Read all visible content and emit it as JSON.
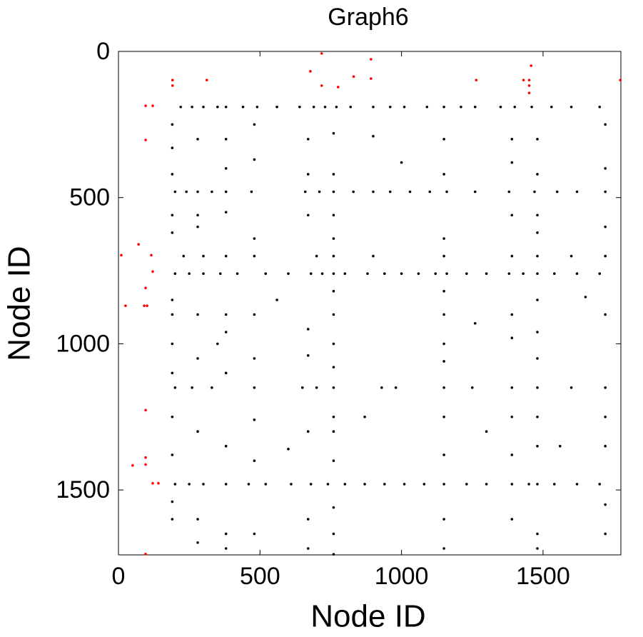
{
  "chart_data": {
    "type": "scatter",
    "title": "Graph6",
    "xlabel": "Node ID",
    "ylabel": "Node ID",
    "xlim": [
      0,
      1775
    ],
    "ylim": [
      0,
      1722
    ],
    "y_reversed": true,
    "xticks": [
      0,
      500,
      1000,
      1500
    ],
    "yticks": [
      0,
      500,
      1000,
      1500
    ],
    "series": [
      {
        "color": "#000000",
        "points": [
          [
            220,
            190
          ],
          [
            260,
            190
          ],
          [
            300,
            190
          ],
          [
            350,
            190
          ],
          [
            380,
            190
          ],
          [
            440,
            190
          ],
          [
            490,
            190
          ],
          [
            560,
            190
          ],
          [
            640,
            190
          ],
          [
            690,
            190
          ],
          [
            730,
            190
          ],
          [
            770,
            190
          ],
          [
            820,
            190
          ],
          [
            900,
            190
          ],
          [
            960,
            190
          ],
          [
            1010,
            190
          ],
          [
            1090,
            190
          ],
          [
            1150,
            190
          ],
          [
            1210,
            190
          ],
          [
            1260,
            190
          ],
          [
            1350,
            190
          ],
          [
            1400,
            190
          ],
          [
            1460,
            190
          ],
          [
            1530,
            190
          ],
          [
            1600,
            190
          ],
          [
            1700,
            190
          ],
          [
            200,
            480
          ],
          [
            240,
            480
          ],
          [
            280,
            480
          ],
          [
            330,
            480
          ],
          [
            380,
            480
          ],
          [
            470,
            480
          ],
          [
            660,
            480
          ],
          [
            710,
            480
          ],
          [
            760,
            480
          ],
          [
            830,
            480
          ],
          [
            900,
            480
          ],
          [
            960,
            480
          ],
          [
            1030,
            480
          ],
          [
            1100,
            480
          ],
          [
            1160,
            480
          ],
          [
            1260,
            480
          ],
          [
            1380,
            480
          ],
          [
            1470,
            480
          ],
          [
            1550,
            480
          ],
          [
            1620,
            480
          ],
          [
            1720,
            480
          ],
          [
            200,
            760
          ],
          [
            250,
            760
          ],
          [
            300,
            760
          ],
          [
            360,
            760
          ],
          [
            420,
            760
          ],
          [
            520,
            760
          ],
          [
            600,
            760
          ],
          [
            680,
            760
          ],
          [
            720,
            760
          ],
          [
            760,
            760
          ],
          [
            800,
            760
          ],
          [
            880,
            760
          ],
          [
            940,
            760
          ],
          [
            1000,
            760
          ],
          [
            1060,
            760
          ],
          [
            1120,
            760
          ],
          [
            1160,
            760
          ],
          [
            1230,
            760
          ],
          [
            1300,
            760
          ],
          [
            1380,
            760
          ],
          [
            1430,
            760
          ],
          [
            1480,
            760
          ],
          [
            1540,
            760
          ],
          [
            1620,
            760
          ],
          [
            1700,
            760
          ],
          [
            230,
            700
          ],
          [
            300,
            700
          ],
          [
            380,
            700
          ],
          [
            480,
            700
          ],
          [
            700,
            700
          ],
          [
            760,
            700
          ],
          [
            900,
            700
          ],
          [
            1150,
            700
          ],
          [
            1390,
            700
          ],
          [
            1480,
            700
          ],
          [
            1600,
            700
          ],
          [
            1720,
            700
          ],
          [
            200,
            1150
          ],
          [
            260,
            1150
          ],
          [
            330,
            1150
          ],
          [
            480,
            1150
          ],
          [
            650,
            1150
          ],
          [
            700,
            1150
          ],
          [
            760,
            1150
          ],
          [
            930,
            1150
          ],
          [
            980,
            1150
          ],
          [
            1150,
            1150
          ],
          [
            1250,
            1150
          ],
          [
            1390,
            1150
          ],
          [
            1480,
            1150
          ],
          [
            1600,
            1150
          ],
          [
            1720,
            1150
          ],
          [
            200,
            1480
          ],
          [
            250,
            1480
          ],
          [
            300,
            1480
          ],
          [
            380,
            1480
          ],
          [
            460,
            1480
          ],
          [
            520,
            1480
          ],
          [
            610,
            1480
          ],
          [
            680,
            1480
          ],
          [
            740,
            1480
          ],
          [
            800,
            1480
          ],
          [
            870,
            1480
          ],
          [
            940,
            1480
          ],
          [
            1010,
            1480
          ],
          [
            1080,
            1480
          ],
          [
            1150,
            1480
          ],
          [
            1230,
            1480
          ],
          [
            1300,
            1480
          ],
          [
            1390,
            1480
          ],
          [
            1450,
            1480
          ],
          [
            1480,
            1480
          ],
          [
            1540,
            1480
          ],
          [
            1620,
            1480
          ],
          [
            1700,
            1480
          ],
          [
            190,
            250
          ],
          [
            190,
            330
          ],
          [
            190,
            420
          ],
          [
            190,
            560
          ],
          [
            190,
            620
          ],
          [
            190,
            850
          ],
          [
            190,
            900
          ],
          [
            190,
            1000
          ],
          [
            190,
            1100
          ],
          [
            190,
            1250
          ],
          [
            190,
            1380
          ],
          [
            190,
            1540
          ],
          [
            190,
            1600
          ],
          [
            280,
            300
          ],
          [
            280,
            560
          ],
          [
            280,
            600
          ],
          [
            280,
            900
          ],
          [
            280,
            1050
          ],
          [
            280,
            1300
          ],
          [
            280,
            1600
          ],
          [
            280,
            1680
          ],
          [
            380,
            300
          ],
          [
            380,
            400
          ],
          [
            380,
            550
          ],
          [
            380,
            900
          ],
          [
            380,
            960
          ],
          [
            380,
            1100
          ],
          [
            380,
            1350
          ],
          [
            380,
            1650
          ],
          [
            380,
            1700
          ],
          [
            480,
            250
          ],
          [
            480,
            370
          ],
          [
            480,
            640
          ],
          [
            480,
            900
          ],
          [
            480,
            1050
          ],
          [
            480,
            1260
          ],
          [
            480,
            1400
          ],
          [
            480,
            1650
          ],
          [
            670,
            300
          ],
          [
            670,
            420
          ],
          [
            670,
            560
          ],
          [
            670,
            950
          ],
          [
            670,
            1040
          ],
          [
            670,
            1300
          ],
          [
            670,
            1600
          ],
          [
            670,
            1700
          ],
          [
            760,
            280
          ],
          [
            760,
            420
          ],
          [
            760,
            560
          ],
          [
            760,
            640
          ],
          [
            760,
            820
          ],
          [
            760,
            900
          ],
          [
            760,
            1000
          ],
          [
            760,
            1080
          ],
          [
            760,
            1250
          ],
          [
            760,
            1300
          ],
          [
            760,
            1400
          ],
          [
            760,
            1560
          ],
          [
            760,
            1650
          ],
          [
            760,
            1720
          ],
          [
            1150,
            300
          ],
          [
            1150,
            420
          ],
          [
            1150,
            640
          ],
          [
            1150,
            820
          ],
          [
            1150,
            900
          ],
          [
            1150,
            1000
          ],
          [
            1150,
            1060
          ],
          [
            1150,
            1250
          ],
          [
            1150,
            1380
          ],
          [
            1150,
            1600
          ],
          [
            1150,
            1700
          ],
          [
            1390,
            300
          ],
          [
            1390,
            380
          ],
          [
            1390,
            560
          ],
          [
            1390,
            900
          ],
          [
            1390,
            980
          ],
          [
            1390,
            1250
          ],
          [
            1390,
            1380
          ],
          [
            1390,
            1600
          ],
          [
            1480,
            300
          ],
          [
            1480,
            420
          ],
          [
            1480,
            560
          ],
          [
            1480,
            620
          ],
          [
            1480,
            850
          ],
          [
            1480,
            960
          ],
          [
            1480,
            1050
          ],
          [
            1480,
            1250
          ],
          [
            1480,
            1350
          ],
          [
            1480,
            1650
          ],
          [
            1480,
            1700
          ],
          [
            1720,
            250
          ],
          [
            1720,
            400
          ],
          [
            1720,
            600
          ],
          [
            1720,
            900
          ],
          [
            1720,
            1250
          ],
          [
            1720,
            1350
          ],
          [
            1720,
            1550
          ],
          [
            1720,
            1650
          ],
          [
            900,
            290
          ],
          [
            1000,
            380
          ],
          [
            560,
            850
          ],
          [
            1260,
            930
          ],
          [
            1650,
            840
          ],
          [
            870,
            1250
          ],
          [
            1300,
            1300
          ],
          [
            1560,
            1350
          ],
          [
            600,
            1360
          ],
          [
            350,
            1000
          ]
        ]
      },
      {
        "color": "#ff0000",
        "points": [
          [
            718,
            7
          ],
          [
            892,
            27
          ],
          [
            678,
            68
          ],
          [
            718,
            117
          ],
          [
            776,
            122
          ],
          [
            831,
            86
          ],
          [
            892,
            93
          ],
          [
            191,
            98
          ],
          [
            191,
            117
          ],
          [
            312,
            98
          ],
          [
            1264,
            98
          ],
          [
            1431,
            98
          ],
          [
            1451,
            98
          ],
          [
            1458,
            49
          ],
          [
            1451,
            117
          ],
          [
            1451,
            142
          ],
          [
            1773,
            98
          ],
          [
            96,
            186
          ],
          [
            121,
            186
          ],
          [
            96,
            303
          ],
          [
            10,
            697
          ],
          [
            71,
            660
          ],
          [
            116,
            697
          ],
          [
            121,
            753
          ],
          [
            96,
            809
          ],
          [
            25,
            870
          ],
          [
            91,
            870
          ],
          [
            101,
            870
          ],
          [
            96,
            1227
          ],
          [
            96,
            1389
          ],
          [
            96,
            1413
          ],
          [
            50,
            1416
          ],
          [
            121,
            1477
          ],
          [
            141,
            1477
          ],
          [
            96,
            1719
          ]
        ]
      }
    ]
  }
}
